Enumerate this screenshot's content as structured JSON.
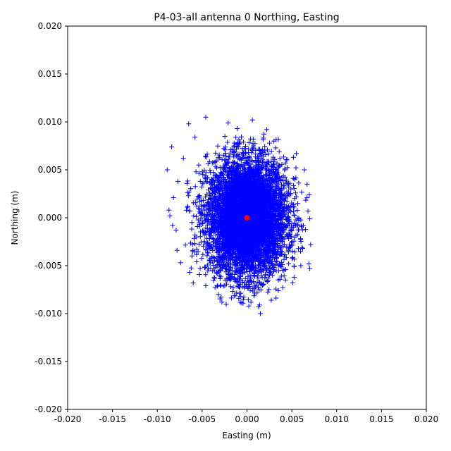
{
  "chart_data": {
    "type": "scatter",
    "title": "P4-03-all antenna 0 Northing, Easting",
    "xlabel": "Easting (m)",
    "ylabel": "Northing (m)",
    "xlim": [
      -0.02,
      0.02
    ],
    "ylim": [
      -0.02,
      0.02
    ],
    "x_ticks": [
      "-0.020",
      "-0.015",
      "-0.010",
      "-0.005",
      "0.000",
      "0.005",
      "0.010",
      "0.015",
      "0.020"
    ],
    "y_ticks": [
      "-0.020",
      "-0.015",
      "-0.010",
      "-0.005",
      "0.000",
      "0.005",
      "0.010",
      "0.015",
      "0.020"
    ],
    "grid": false,
    "series": [
      {
        "marker": "plus",
        "color": "#0000ff",
        "points": [
          [
            -0.0046,
            0.0105
          ],
          [
            0.0006,
            0.0102
          ],
          [
            -0.0021,
            0.0099
          ],
          [
            -0.0065,
            0.0098
          ],
          [
            0.0022,
            0.0092
          ],
          [
            -0.0084,
            0.0074
          ],
          [
            -0.0071,
            0.0062
          ],
          [
            0.0055,
            0.0067
          ],
          [
            0.0064,
            0.005
          ],
          [
            -0.0089,
            0.005
          ],
          [
            -0.0082,
            0.0021
          ],
          [
            0.0067,
            0.0035
          ],
          [
            0.0067,
            0.0021
          ],
          [
            -0.0087,
            0.0008
          ],
          [
            -0.0086,
            0.0002
          ],
          [
            -0.0083,
            -0.0008
          ],
          [
            0.0068,
            0.0007
          ],
          [
            0.007,
            -0.0001
          ],
          [
            0.0071,
            -0.0028
          ],
          [
            0.0069,
            -0.0048
          ],
          [
            0.007,
            -0.0053
          ],
          [
            -0.0078,
            -0.0034
          ],
          [
            -0.0074,
            -0.0047
          ],
          [
            -0.0064,
            -0.0057
          ],
          [
            0.006,
            -0.005
          ],
          [
            -0.0046,
            -0.0071
          ],
          [
            0.0043,
            -0.0065
          ],
          [
            -0.0032,
            -0.008
          ],
          [
            0.0035,
            -0.0076
          ],
          [
            -0.0006,
            -0.0089
          ],
          [
            0.0027,
            -0.0086
          ],
          [
            0.0015,
            -0.01
          ],
          [
            -0.0058,
            0.0084
          ],
          [
            0.003,
            0.008
          ],
          [
            -0.0077,
            0.0038
          ],
          [
            -0.0079,
            -0.0013
          ],
          [
            0.0062,
            -0.0032
          ],
          [
            -0.006,
            -0.0068
          ],
          [
            -0.0011,
            0.0093
          ],
          [
            0.0013,
            -0.0093
          ]
        ]
      },
      {
        "marker": "circle",
        "color": "#ff0000",
        "points": [
          [
            0.0,
            0.0
          ]
        ]
      }
    ]
  }
}
